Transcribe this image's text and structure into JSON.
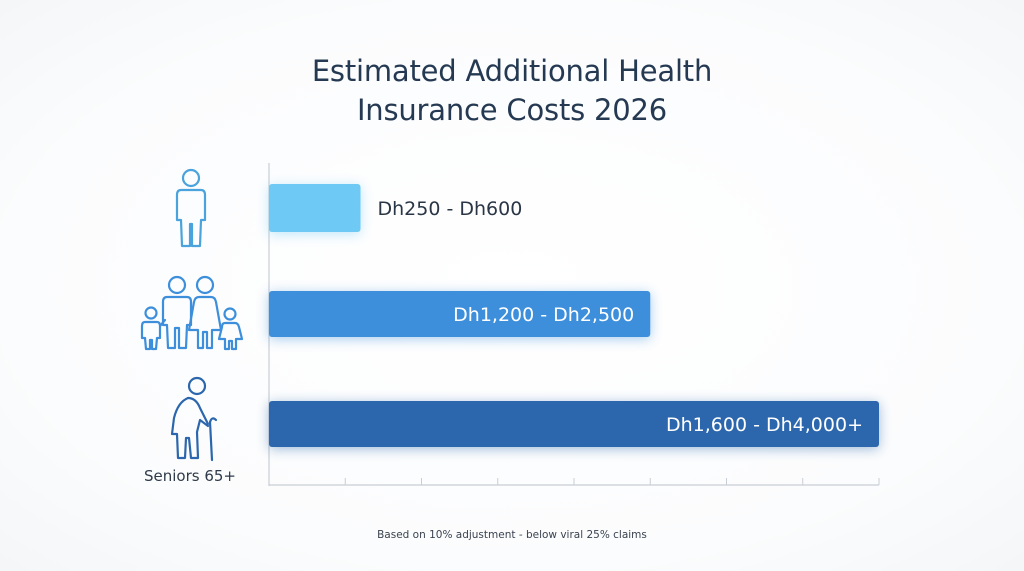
{
  "title_lines": [
    "Estimated Additional Health",
    "Insurance Costs 2026"
  ],
  "footnote": "Based on 10% adjustment - below viral 25% claims",
  "chart_data": {
    "type": "bar",
    "orientation": "horizontal",
    "title": "Estimated Additional Health Insurance Costs 2026",
    "categories": [
      "",
      "",
      "Seniors 65+"
    ],
    "category_icons": [
      "person-icon",
      "family-icon",
      "senior-with-cane-icon"
    ],
    "ranges": [
      {
        "low": 250,
        "high": 600,
        "label": "Dh250 - Dh600"
      },
      {
        "low": 1200,
        "high": 2500,
        "label": "Dh1,200 - Dh2,500"
      },
      {
        "low": 1600,
        "high": 4000,
        "label": "Dh1,600 - Dh4,000+"
      }
    ],
    "values": [
      600,
      2500,
      4000
    ],
    "xlim": [
      0,
      4000
    ],
    "xlabel": "",
    "ylabel": "",
    "grid": false,
    "legend": "none",
    "colors": [
      "#6ec9f5",
      "#3d8fdc",
      "#2c67ad"
    ],
    "label_colors": [
      "#2a3646",
      "#ffffff",
      "#ffffff"
    ]
  }
}
